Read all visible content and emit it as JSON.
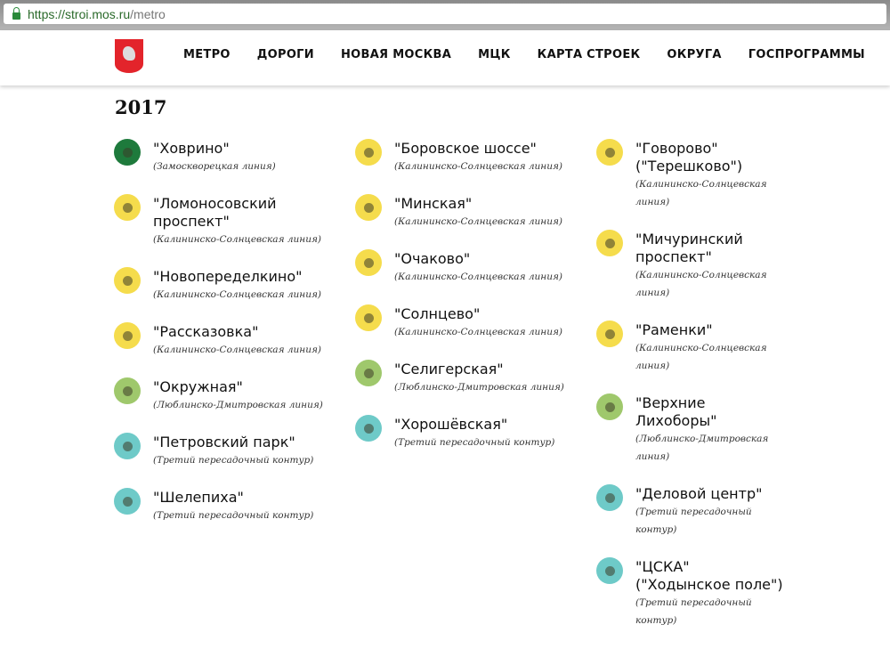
{
  "browser": {
    "url_main": "https://stroi.mos.ru",
    "url_path": "/metro"
  },
  "nav": [
    "МЕТРО",
    "ДОРОГИ",
    "НОВАЯ МОСКВА",
    "МЦК",
    "КАРТА СТРОЕК",
    "ОКРУГА",
    "ГОСПРОГРАММЫ"
  ],
  "year": "2017",
  "colors": {
    "zamoskvoretskaya": "#1e7a3c",
    "kalininsko": "#f5dc4c",
    "lyublinsko": "#9fc86c",
    "tpk": "#6ecac8"
  },
  "columns": [
    [
      {
        "name": "\"Ховрино\"",
        "line": "(Замоскворецкая линия)",
        "color": "#1e7a3c"
      },
      {
        "name": "\"Ломоносовский проспект\"",
        "line": "(Калининско-Солнцевская линия)",
        "color": "#f5dc4c"
      },
      {
        "name": "\"Новопеределкино\"",
        "line": "(Калининско-Солнцевская линия)",
        "color": "#f5dc4c"
      },
      {
        "name": "\"Рассказовка\"",
        "line": "(Калининско-Солнцевская линия)",
        "color": "#f5dc4c"
      },
      {
        "name": "\"Окружная\"",
        "line": "(Люблинско-Дмитровская линия)",
        "color": "#9fc86c"
      },
      {
        "name": "\"Петровский парк\"",
        "line": "(Третий пересадочный контур)",
        "color": "#6ecac8"
      },
      {
        "name": "\"Шелепиха\"",
        "line": "(Третий пересадочный контур)",
        "color": "#6ecac8"
      }
    ],
    [
      {
        "name": "\"Боровское шоссе\"",
        "line": "(Калининско-Солнцевская линия)",
        "color": "#f5dc4c"
      },
      {
        "name": "\"Минская\"",
        "line": "(Калининско-Солнцевская линия)",
        "color": "#f5dc4c"
      },
      {
        "name": "\"Очаково\"",
        "line": "(Калининско-Солнцевская линия)",
        "color": "#f5dc4c"
      },
      {
        "name": "\"Солнцево\"",
        "line": "(Калининско-Солнцевская линия)",
        "color": "#f5dc4c"
      },
      {
        "name": "\"Селигерская\"",
        "line": "(Люблинско-Дмитровская линия)",
        "color": "#9fc86c"
      },
      {
        "name": "\"Хорошёвская\"",
        "line": "(Третий пересадочный контур)",
        "color": "#6ecac8"
      }
    ],
    [
      {
        "name": "\"Говорово\" (\"Терешково\")",
        "line": "(Калининско-Солнцевская линия)",
        "color": "#f5dc4c"
      },
      {
        "name": "\"Мичуринский проспект\"",
        "line": "(Калининско-Солнцевская линия)",
        "color": "#f5dc4c"
      },
      {
        "name": "\"Раменки\"",
        "line": "(Калининско-Солнцевская линия)",
        "color": "#f5dc4c"
      },
      {
        "name": "\"Верхние Лихоборы\"",
        "line": "(Люблинско-Дмитровская линия)",
        "color": "#9fc86c"
      },
      {
        "name": "\"Деловой центр\"",
        "line": "(Третий пересадочный контур)",
        "color": "#6ecac8"
      },
      {
        "name": "\"ЦСКА\" (\"Ходынское поле\")",
        "line": "(Третий пересадочный контур)",
        "color": "#6ecac8"
      }
    ]
  ]
}
